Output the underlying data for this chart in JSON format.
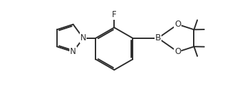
{
  "bg_color": "#ffffff",
  "line_color": "#2a2a2a",
  "line_width": 1.4,
  "font_size_atom": 8.5,
  "xlim": [
    -0.5,
    8.8
  ],
  "ylim": [
    -0.3,
    3.5
  ],
  "figsize": [
    3.29,
    1.39
  ],
  "dpi": 100
}
